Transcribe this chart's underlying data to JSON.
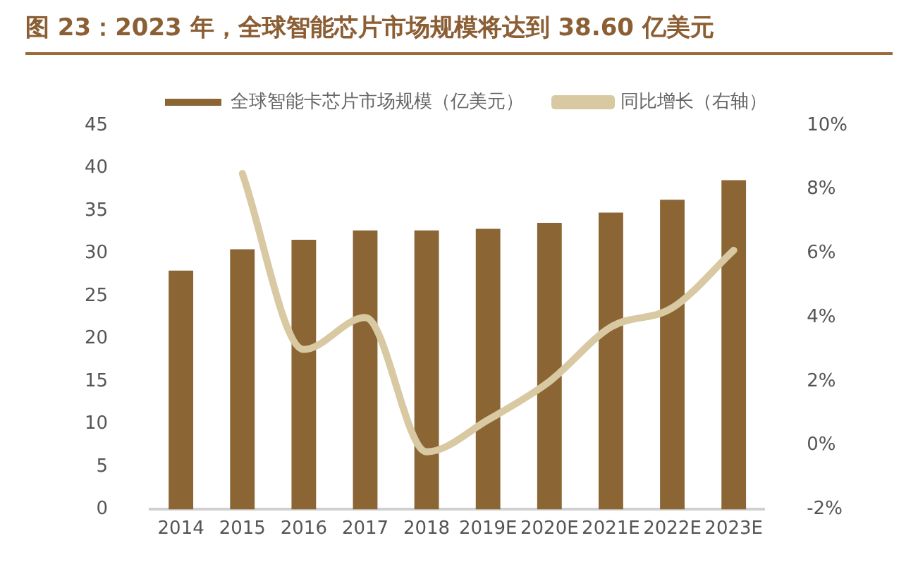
{
  "chart_data": {
    "type": "bar",
    "title": "图 23：2023 年，全球智能芯片市场规模将达到 38.60 亿美元",
    "categories": [
      "2014",
      "2015",
      "2016",
      "2017",
      "2018",
      "2019E",
      "2020E",
      "2021E",
      "2022E",
      "2023E"
    ],
    "series": [
      {
        "name": "全球智能卡芯片市场规模（亿美元）",
        "color": "#8b6534",
        "values": [
          28.0,
          30.5,
          31.6,
          32.7,
          32.7,
          32.9,
          33.6,
          34.8,
          36.3,
          38.6
        ]
      },
      {
        "name": "同比增长（右轴）",
        "type": "line",
        "axis": "y2",
        "color": "#d8c9a3",
        "values": [
          null,
          8.5,
          3.0,
          4.0,
          -0.2,
          0.8,
          2.0,
          3.7,
          4.3,
          6.1
        ]
      }
    ],
    "ylim": [
      0,
      45
    ],
    "yticks": [
      0,
      5,
      10,
      15,
      20,
      25,
      30,
      35,
      40,
      45
    ],
    "y2lim": [
      -2,
      10
    ],
    "y2ticks": [
      {
        "value": -2,
        "label": "-2%"
      },
      {
        "value": 0,
        "label": "0%"
      },
      {
        "value": 2,
        "label": "2%"
      },
      {
        "value": 4,
        "label": "4%"
      },
      {
        "value": 6,
        "label": "6%"
      },
      {
        "value": 8,
        "label": "8%"
      },
      {
        "value": 10,
        "label": "10%"
      }
    ],
    "legend": "top",
    "grid": false
  }
}
